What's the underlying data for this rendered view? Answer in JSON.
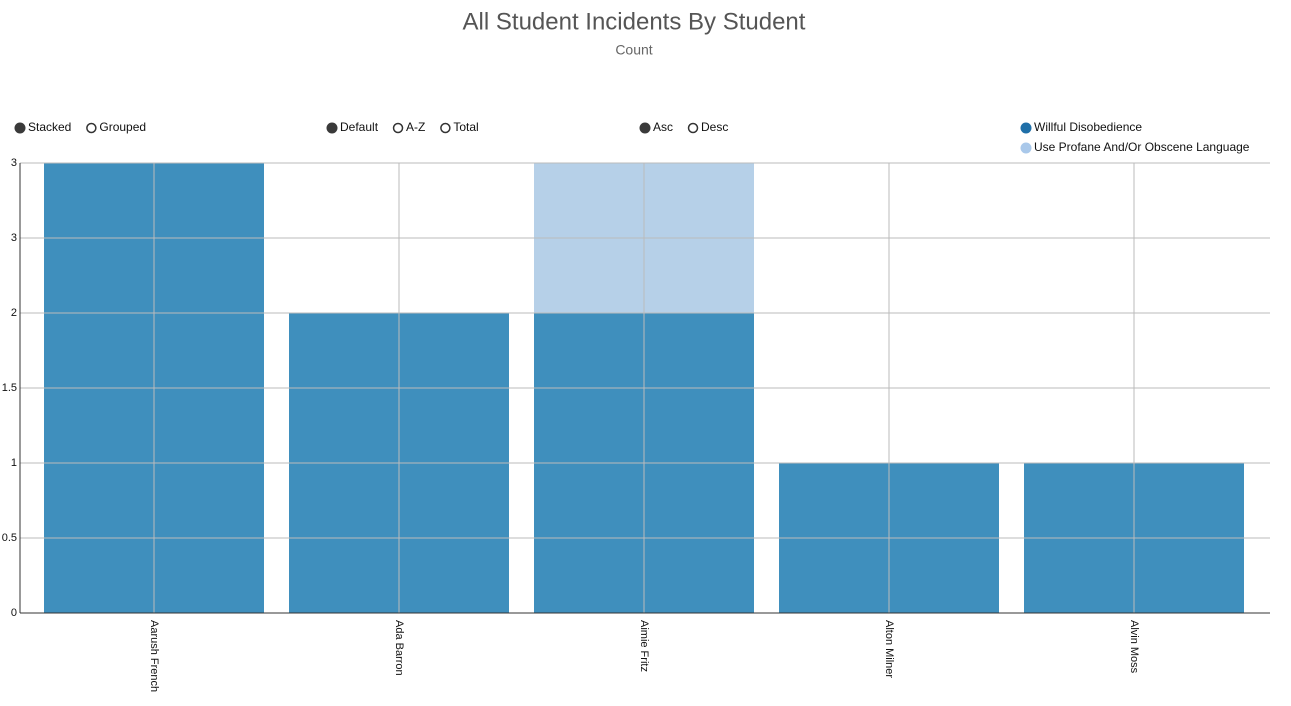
{
  "chart_data": {
    "type": "bar",
    "stacked": true,
    "title": "All Student Incidents By Student",
    "subtitle": "Count",
    "categories": [
      "Aarush French",
      "Ada Barron",
      "Aimie Fritz",
      "Alton Milner",
      "Alvin Moss"
    ],
    "series": [
      {
        "name": "Willful Disobedience",
        "color": "#3f8fbd",
        "legend_color": "#1f6fa8",
        "values": [
          3,
          2,
          2,
          1,
          1
        ]
      },
      {
        "name": "Use Profane And/Or Obscene Language",
        "color": "#b6d0e8",
        "legend_color": "#a9c8ea",
        "values": [
          0,
          0,
          1,
          0,
          0
        ]
      }
    ],
    "ylim": [
      0,
      3
    ],
    "yticks": [
      0,
      0.5,
      1,
      1.5,
      2,
      {
        "value": 2.5,
        "label": "3"
      },
      3
    ],
    "grid": true,
    "legend": "top-right"
  },
  "controls": [
    [
      {
        "label": "Stacked",
        "checked": true
      },
      {
        "label": "Grouped",
        "checked": false
      }
    ],
    [
      {
        "label": "Default",
        "checked": true
      },
      {
        "label": "A-Z",
        "checked": false
      },
      {
        "label": "Total",
        "checked": false
      }
    ],
    [
      {
        "label": "Asc",
        "checked": true
      },
      {
        "label": "Desc",
        "checked": false
      }
    ]
  ]
}
